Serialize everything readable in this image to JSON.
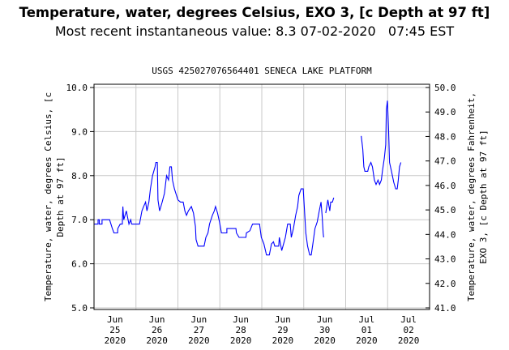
{
  "header": {
    "title": "Temperature, water, degrees Celsius, EXO 3, [c Depth at 97 ft]",
    "subtitle": "Most recent instantaneous value: 8.3 07-02-2020   07:45 EST"
  },
  "chart_data": {
    "type": "line",
    "title": "USGS 425027076564401 SENECA LAKE PLATFORM",
    "ylabel": "Temperature, water, degrees Celsius, [c Depth at 97 ft]",
    "y2label": "Temperature, water, degrees Fahrenheit, EXO 3, [c Depth at 97 ft]",
    "ylim": [
      5.0,
      10.0
    ],
    "y2lim": [
      41.0,
      50.0
    ],
    "yticks": [
      "5.0",
      "6.0",
      "7.0",
      "8.0",
      "9.0",
      "10.0"
    ],
    "y2ticks": [
      "41.0",
      "42.0",
      "43.0",
      "44.0",
      "45.0",
      "46.0",
      "47.0",
      "48.0",
      "49.0",
      "50.0"
    ],
    "x_units": "hours since 2020-06-25 00:00",
    "xlim": [
      0,
      192
    ],
    "xticks": [
      {
        "month": "Jun",
        "day": "25",
        "year": "2020"
      },
      {
        "month": "Jun",
        "day": "26",
        "year": "2020"
      },
      {
        "month": "Jun",
        "day": "27",
        "year": "2020"
      },
      {
        "month": "Jun",
        "day": "28",
        "year": "2020"
      },
      {
        "month": "Jun",
        "day": "29",
        "year": "2020"
      },
      {
        "month": "Jun",
        "day": "30",
        "year": "2020"
      },
      {
        "month": "Jul",
        "day": "01",
        "year": "2020"
      },
      {
        "month": "Jul",
        "day": "02",
        "year": "2020"
      }
    ],
    "line_color": "#0000ff",
    "segments": [
      [
        [
          0,
          6.9
        ],
        [
          2.3,
          6.9
        ],
        [
          2.3,
          7.0
        ],
        [
          3,
          7.0
        ],
        [
          3,
          6.9
        ],
        [
          4.6,
          6.9
        ],
        [
          4.6,
          7.0
        ],
        [
          8.9,
          7.0
        ],
        [
          10.5,
          6.8
        ],
        [
          11.4,
          6.7
        ],
        [
          13.5,
          6.7
        ],
        [
          13.6,
          6.8
        ],
        [
          15,
          6.9
        ],
        [
          16.2,
          6.9
        ],
        [
          16.5,
          7.3
        ],
        [
          17,
          7.0
        ],
        [
          18.5,
          7.2
        ],
        [
          19.5,
          7.0
        ],
        [
          20,
          6.9
        ],
        [
          21,
          7.0
        ],
        [
          21.5,
          6.9
        ],
        [
          26,
          6.9
        ],
        [
          26.5,
          7.0
        ],
        [
          27.4,
          7.2
        ],
        [
          28.4,
          7.3
        ],
        [
          29.5,
          7.4
        ],
        [
          30.3,
          7.2
        ],
        [
          31.4,
          7.4
        ],
        [
          32.3,
          7.7
        ],
        [
          33.5,
          8.0
        ],
        [
          34.9,
          8.2
        ],
        [
          35.4,
          8.3
        ],
        [
          36.2,
          8.3
        ],
        [
          36.6,
          7.45
        ],
        [
          37.5,
          7.2
        ],
        [
          39,
          7.4
        ],
        [
          40.3,
          7.6
        ],
        [
          41.5,
          8.0
        ],
        [
          42.6,
          7.9
        ],
        [
          43.4,
          8.2
        ],
        [
          44.3,
          8.2
        ],
        [
          44.9,
          7.9
        ],
        [
          46,
          7.7
        ],
        [
          48,
          7.45
        ],
        [
          49.5,
          7.4
        ],
        [
          51,
          7.4
        ],
        [
          52,
          7.2
        ],
        [
          52.9,
          7.1
        ],
        [
          54,
          7.2
        ],
        [
          55.7,
          7.3
        ],
        [
          56.9,
          7.15
        ],
        [
          58,
          6.85
        ],
        [
          58.4,
          6.55
        ],
        [
          59.5,
          6.4
        ],
        [
          63,
          6.4
        ],
        [
          64,
          6.6
        ],
        [
          65.2,
          6.7
        ],
        [
          66.1,
          6.9
        ],
        [
          67.7,
          7.1
        ],
        [
          68.8,
          7.2
        ],
        [
          69.5,
          7.3
        ],
        [
          70.7,
          7.15
        ],
        [
          71.8,
          6.95
        ],
        [
          72.9,
          6.7
        ],
        [
          76,
          6.7
        ],
        [
          76,
          6.8
        ],
        [
          81.2,
          6.8
        ],
        [
          81.5,
          6.7
        ],
        [
          83,
          6.6
        ],
        [
          86.9,
          6.6
        ],
        [
          87.2,
          6.7
        ],
        [
          89.2,
          6.75
        ],
        [
          90.7,
          6.9
        ],
        [
          94.7,
          6.9
        ],
        [
          95.7,
          6.6
        ],
        [
          97.2,
          6.45
        ],
        [
          98.7,
          6.2
        ],
        [
          100.3,
          6.2
        ],
        [
          101.5,
          6.45
        ],
        [
          102.7,
          6.5
        ],
        [
          103.4,
          6.4
        ],
        [
          105.7,
          6.4
        ],
        [
          106,
          6.6
        ],
        [
          107.4,
          6.3
        ],
        [
          109.5,
          6.6
        ],
        [
          110.8,
          6.9
        ],
        [
          112.3,
          6.9
        ],
        [
          112.9,
          6.6
        ],
        [
          114.1,
          6.8
        ],
        [
          115.4,
          7.1
        ],
        [
          116.5,
          7.3
        ],
        [
          117.2,
          7.55
        ],
        [
          118.5,
          7.7
        ],
        [
          119.7,
          7.7
        ],
        [
          120.3,
          7.3
        ],
        [
          121.2,
          6.7
        ],
        [
          122.2,
          6.4
        ],
        [
          123.4,
          6.2
        ],
        [
          124.3,
          6.2
        ],
        [
          125.2,
          6.45
        ],
        [
          126.4,
          6.8
        ],
        [
          127.7,
          6.95
        ],
        [
          128.9,
          7.2
        ],
        [
          129.9,
          7.4
        ],
        [
          130.5,
          7.1
        ],
        [
          131.1,
          6.7
        ],
        [
          131.4,
          6.6
        ]
      ],
      [
        [
          132.6,
          7.15
        ],
        [
          133.8,
          7.45
        ],
        [
          134.9,
          7.2
        ],
        [
          135.4,
          7.4
        ],
        [
          136.4,
          7.4
        ],
        [
          137.2,
          7.5
        ]
      ],
      [
        [
          152.9,
          8.9
        ],
        [
          153.8,
          8.6
        ],
        [
          154.4,
          8.2
        ],
        [
          155,
          8.1
        ],
        [
          156.6,
          8.1
        ],
        [
          157.2,
          8.2
        ],
        [
          158.4,
          8.3
        ],
        [
          159.3,
          8.2
        ],
        [
          160.4,
          7.9
        ],
        [
          161.4,
          7.8
        ],
        [
          162.5,
          7.9
        ],
        [
          163.4,
          7.8
        ],
        [
          164.4,
          7.9
        ],
        [
          165,
          8.1
        ],
        [
          166.1,
          8.4
        ],
        [
          166.9,
          8.7
        ],
        [
          167.3,
          9.5
        ],
        [
          167.9,
          9.7
        ],
        [
          168.6,
          9.0
        ],
        [
          169.1,
          8.3
        ],
        [
          170.2,
          8.1
        ],
        [
          171.5,
          7.85
        ],
        [
          172.6,
          7.7
        ],
        [
          173.5,
          7.7
        ],
        [
          174.1,
          7.9
        ],
        [
          174.8,
          8.2
        ],
        [
          175.6,
          8.3
        ]
      ]
    ]
  }
}
